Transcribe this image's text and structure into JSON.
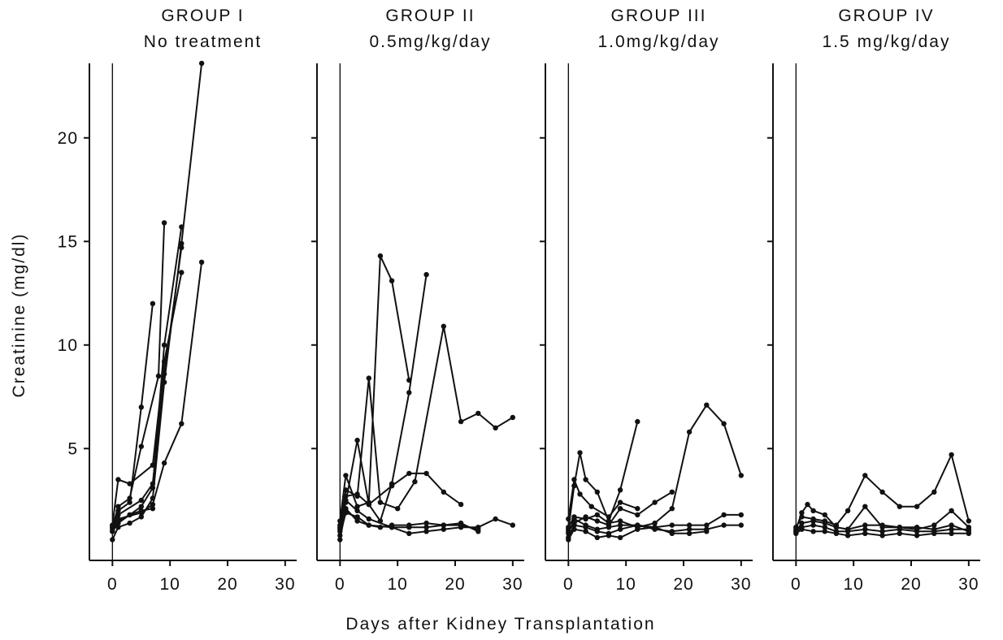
{
  "chart_data": {
    "type": "line",
    "ylabel": "Creatinine (mg/dl)",
    "xlabel": "Days after Kidney Transplantation",
    "shared_yticks": [
      5,
      10,
      15,
      20
    ],
    "shared_xticks": [
      0,
      10,
      20,
      30
    ],
    "panels": [
      {
        "title": [
          "GROUP I",
          "No treatment"
        ],
        "xlim": [
          -4,
          32
        ],
        "ylim": [
          -0.4,
          24.5
        ],
        "series": [
          {
            "x": [
              0,
              1,
              3,
              5,
              7
            ],
            "y": [
              1.0,
              1.5,
              1.8,
              2.0,
              2.1
            ]
          },
          {
            "x": [
              0,
              1,
              5,
              7,
              9,
              12
            ],
            "y": [
              1.2,
              1.8,
              2.5,
              3.3,
              8.6,
              14.7
            ]
          },
          {
            "x": [
              0,
              1,
              3,
              5,
              8,
              9
            ],
            "y": [
              1.2,
              2.2,
              2.6,
              5.1,
              8.5,
              15.9
            ]
          },
          {
            "x": [
              0,
              1,
              3,
              7,
              9,
              12
            ],
            "y": [
              1.3,
              3.5,
              3.3,
              4.2,
              9.2,
              13.5
            ]
          },
          {
            "x": [
              0,
              1,
              3,
              5,
              7,
              9,
              12
            ],
            "y": [
              1.0,
              1.4,
              1.8,
              2.2,
              3.1,
              10.0,
              15.7
            ]
          },
          {
            "x": [
              0,
              1,
              3,
              5,
              7
            ],
            "y": [
              1.3,
              2.0,
              2.4,
              7.0,
              12.0
            ]
          },
          {
            "x": [
              0,
              1,
              5,
              7,
              9,
              12,
              15.5
            ],
            "y": [
              1.1,
              1.6,
              1.9,
              2.3,
              4.3,
              6.2,
              14.0
            ]
          },
          {
            "x": [
              0,
              1,
              3,
              5,
              7,
              9,
              12,
              15.5
            ],
            "y": [
              0.6,
              1.2,
              1.4,
              1.7,
              2.6,
              8.2,
              14.9,
              23.6
            ]
          }
        ]
      },
      {
        "title": [
          "GROUP II",
          "0.5mg/kg/day"
        ],
        "xlim": [
          -4,
          32
        ],
        "ylim": [
          -0.4,
          24.5
        ],
        "series": [
          {
            "x": [
              0,
              1,
              3,
              5,
              7,
              9,
              12
            ],
            "y": [
              1.5,
              3.7,
              2.2,
              2.4,
              14.3,
              13.1,
              8.3
            ]
          },
          {
            "x": [
              0,
              1,
              3,
              5,
              7,
              9,
              12,
              15
            ],
            "y": [
              1.3,
              2.4,
              5.4,
              2.3,
              1.5,
              3.3,
              7.7,
              13.4
            ]
          },
          {
            "x": [
              0,
              1,
              3,
              5,
              9,
              12,
              15,
              18,
              21
            ],
            "y": [
              1.2,
              2.7,
              2.8,
              2.3,
              3.2,
              3.8,
              3.8,
              2.9,
              2.3
            ]
          },
          {
            "x": [
              0,
              1,
              3,
              5,
              7,
              10,
              13,
              18,
              21,
              24,
              27,
              30
            ],
            "y": [
              1.1,
              3.0,
              2.7,
              8.4,
              2.4,
              2.1,
              3.4,
              10.9,
              6.3,
              6.7,
              6.0,
              6.5
            ]
          },
          {
            "x": [
              0,
              1,
              3,
              5,
              9,
              12,
              15,
              18,
              21,
              24
            ],
            "y": [
              1.0,
              2.5,
              2.0,
              1.6,
              1.2,
              1.2,
              1.2,
              1.3,
              1.4,
              1.0
            ]
          },
          {
            "x": [
              0,
              1,
              3,
              5,
              9,
              12,
              15,
              18,
              21,
              24,
              27,
              30
            ],
            "y": [
              0.8,
              1.9,
              1.7,
              1.3,
              1.2,
              0.9,
              1.0,
              1.1,
              1.2,
              1.2,
              1.6,
              1.3
            ]
          },
          {
            "x": [
              0,
              1,
              3,
              5,
              7,
              9,
              12,
              15,
              18,
              21,
              24
            ],
            "y": [
              0.6,
              2.1,
              1.5,
              1.3,
              1.2,
              1.3,
              1.3,
              1.4,
              1.3,
              1.3,
              1.1
            ]
          }
        ]
      },
      {
        "title": [
          "GROUP III",
          "1.0mg/kg/day"
        ],
        "xlim": [
          -4,
          32
        ],
        "ylim": [
          -0.4,
          24.5
        ],
        "series": [
          {
            "x": [
              0,
              1,
              2,
              3,
              5,
              7,
              9,
              12
            ],
            "y": [
              1.1,
              3.2,
              4.8,
              3.5,
              2.9,
              1.5,
              3.0,
              6.3
            ]
          },
          {
            "x": [
              0,
              1,
              2,
              4,
              7,
              9,
              12
            ],
            "y": [
              1.6,
              3.5,
              2.8,
              2.2,
              1.7,
              2.4,
              2.1
            ]
          },
          {
            "x": [
              0,
              1,
              3,
              5,
              7,
              9,
              12,
              15,
              18,
              21,
              24,
              27,
              30
            ],
            "y": [
              1.2,
              1.7,
              1.6,
              1.8,
              1.4,
              1.5,
              1.2,
              1.4,
              2.1,
              5.8,
              7.1,
              6.2,
              3.7
            ]
          },
          {
            "x": [
              0,
              1,
              3,
              5,
              7,
              9,
              12,
              15,
              18
            ],
            "y": [
              1.0,
              1.4,
              1.7,
              1.5,
              1.3,
              2.1,
              1.8,
              2.4,
              2.9
            ]
          },
          {
            "x": [
              0,
              1,
              3,
              5,
              7,
              9,
              12,
              15,
              18,
              21,
              24,
              27,
              30
            ],
            "y": [
              0.9,
              1.6,
              1.3,
              1.1,
              1.2,
              1.3,
              1.3,
              1.2,
              1.3,
              1.3,
              1.3,
              1.8,
              1.8
            ]
          },
          {
            "x": [
              0,
              1,
              3,
              5,
              7,
              9,
              12,
              15,
              18,
              21,
              24,
              27,
              30
            ],
            "y": [
              0.7,
              1.3,
              1.2,
              1.0,
              0.9,
              1.1,
              1.3,
              1.1,
              1.0,
              1.1,
              1.1,
              1.3,
              1.3
            ]
          },
          {
            "x": [
              0,
              1,
              3,
              5,
              7,
              9,
              12,
              15,
              18,
              21,
              24
            ],
            "y": [
              0.6,
              1.1,
              1.0,
              0.7,
              0.8,
              0.7,
              1.1,
              1.2,
              0.9,
              0.9,
              1.0
            ]
          }
        ]
      },
      {
        "title": [
          "GROUP IV",
          "1.5 mg/kg/day"
        ],
        "xlim": [
          -4,
          32
        ],
        "ylim": [
          -0.4,
          24.5
        ],
        "series": [
          {
            "x": [
              0,
              1,
              3,
              5,
              7,
              9,
              12,
              15,
              18,
              21,
              24,
              27,
              30
            ],
            "y": [
              1.2,
              1.7,
              1.6,
              1.5,
              1.3,
              2.0,
              3.7,
              2.9,
              2.2,
              2.2,
              2.9,
              4.7,
              1.5
            ]
          },
          {
            "x": [
              0,
              1,
              2,
              3,
              5,
              7,
              9,
              12,
              15,
              18,
              21,
              24,
              27,
              30
            ],
            "y": [
              1.1,
              1.9,
              2.3,
              2.0,
              1.8,
              1.2,
              1.1,
              2.2,
              1.2,
              1.2,
              1.1,
              1.3,
              2.0,
              1.2
            ]
          },
          {
            "x": [
              0,
              1,
              3,
              5,
              7,
              9,
              12,
              15,
              18,
              21,
              24,
              27,
              30
            ],
            "y": [
              1.0,
              1.4,
              1.5,
              1.4,
              1.2,
              1.1,
              1.3,
              1.3,
              1.2,
              1.2,
              1.1,
              1.3,
              1.0
            ]
          },
          {
            "x": [
              0,
              1,
              3,
              5,
              7,
              9,
              12,
              15,
              18,
              21,
              24,
              27,
              30
            ],
            "y": [
              1.0,
              1.2,
              1.3,
              1.2,
              1.0,
              1.0,
              1.1,
              1.0,
              1.1,
              1.0,
              1.0,
              1.1,
              1.1
            ]
          },
          {
            "x": [
              0,
              1,
              3,
              5,
              7,
              9,
              12,
              15,
              18,
              21,
              24,
              27,
              30
            ],
            "y": [
              0.9,
              1.1,
              1.0,
              1.0,
              0.9,
              0.8,
              0.9,
              0.8,
              0.9,
              0.8,
              0.9,
              0.9,
              0.9
            ]
          }
        ]
      }
    ]
  }
}
